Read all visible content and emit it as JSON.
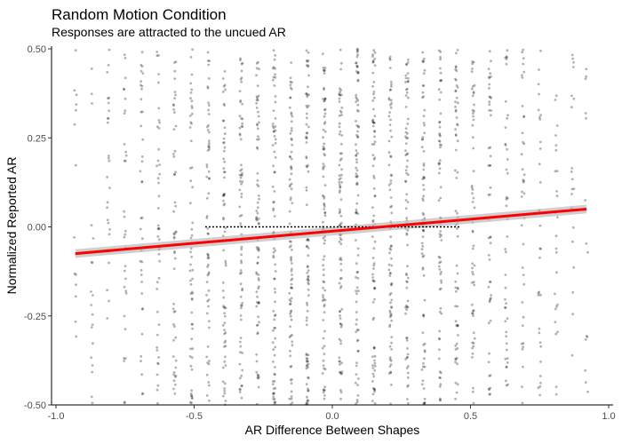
{
  "chart_data": {
    "type": "scatter",
    "title": "Random Motion Condition",
    "subtitle": "Responses are attracted to the uncued AR",
    "xlabel": "AR Difference Between Shapes",
    "ylabel": "Normalized Reported AR",
    "xlim": [
      -1.0,
      1.0
    ],
    "ylim": [
      -0.5,
      0.5
    ],
    "x_ticks": [
      -1.0,
      -0.5,
      0.0,
      0.5,
      1.0
    ],
    "x_tick_labels": [
      "-1.0",
      "-0.5",
      "0.0",
      "0.5",
      "1.0"
    ],
    "y_ticks": [
      -0.5,
      -0.25,
      0.0,
      0.25,
      0.5
    ],
    "y_tick_labels": [
      "-0.50",
      "-0.25",
      "0.00",
      "0.25",
      "0.50"
    ],
    "grid": false,
    "point_color": "#000000",
    "point_opacity": 0.3,
    "point_columns_x": [
      -0.93,
      -0.87,
      -0.81,
      -0.75,
      -0.69,
      -0.63,
      -0.57,
      -0.51,
      -0.45,
      -0.39,
      -0.33,
      -0.27,
      -0.21,
      -0.15,
      -0.09,
      -0.03,
      0.03,
      0.09,
      0.15,
      0.21,
      0.27,
      0.33,
      0.39,
      0.45,
      0.51,
      0.57,
      0.63,
      0.69,
      0.75,
      0.81,
      0.87,
      0.92
    ],
    "points_per_column": [
      14,
      20,
      26,
      32,
      38,
      44,
      52,
      58,
      64,
      70,
      76,
      80,
      84,
      88,
      90,
      92,
      92,
      90,
      88,
      84,
      80,
      76,
      70,
      64,
      58,
      52,
      44,
      38,
      32,
      26,
      20,
      14
    ],
    "regression_line": {
      "color": "#ff0000",
      "band_color": "#bbbbbb",
      "x": [
        -0.93,
        0.92
      ],
      "y": [
        -0.075,
        0.05
      ],
      "band_halfwidth": 0.012
    },
    "reference_line": {
      "style": "dotted",
      "color": "#000000",
      "x": [
        -0.46,
        0.46
      ],
      "y": [
        0.0,
        0.0
      ]
    }
  }
}
